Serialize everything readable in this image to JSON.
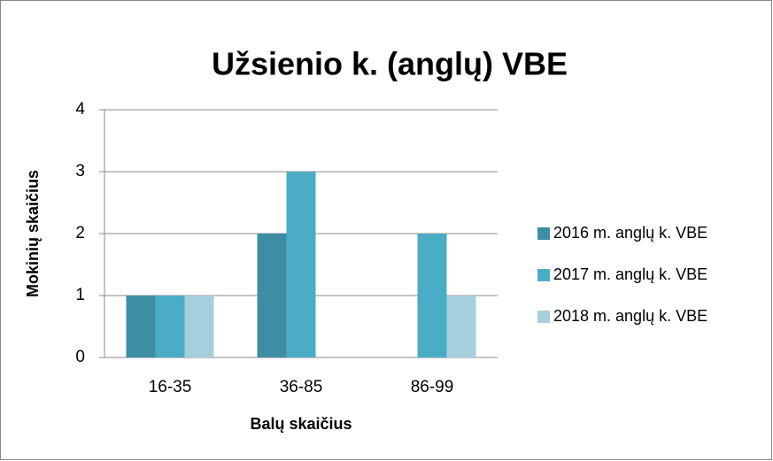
{
  "chart_data": {
    "type": "bar",
    "title": "Užsienio k. (anglų) VBE",
    "x_label": "Balų skaičius",
    "y_label": "Mokinių skaičius",
    "categories": [
      "16-35",
      "36-85",
      "86-99"
    ],
    "series": [
      {
        "name": "2016 m. anglų k. VBE",
        "color": "#3d8ea5",
        "values": [
          1,
          2,
          0
        ]
      },
      {
        "name": "2017 m. anglų k. VBE",
        "color": "#4bacc6",
        "values": [
          1,
          3,
          2
        ]
      },
      {
        "name": "2018 m. anglų k. VBE",
        "color": "#a6cfdc",
        "values": [
          1,
          0,
          1
        ]
      }
    ],
    "ylim": [
      0,
      4
    ],
    "yticks": [
      0,
      1,
      2,
      3,
      4
    ],
    "grid": true,
    "legend": "right"
  }
}
